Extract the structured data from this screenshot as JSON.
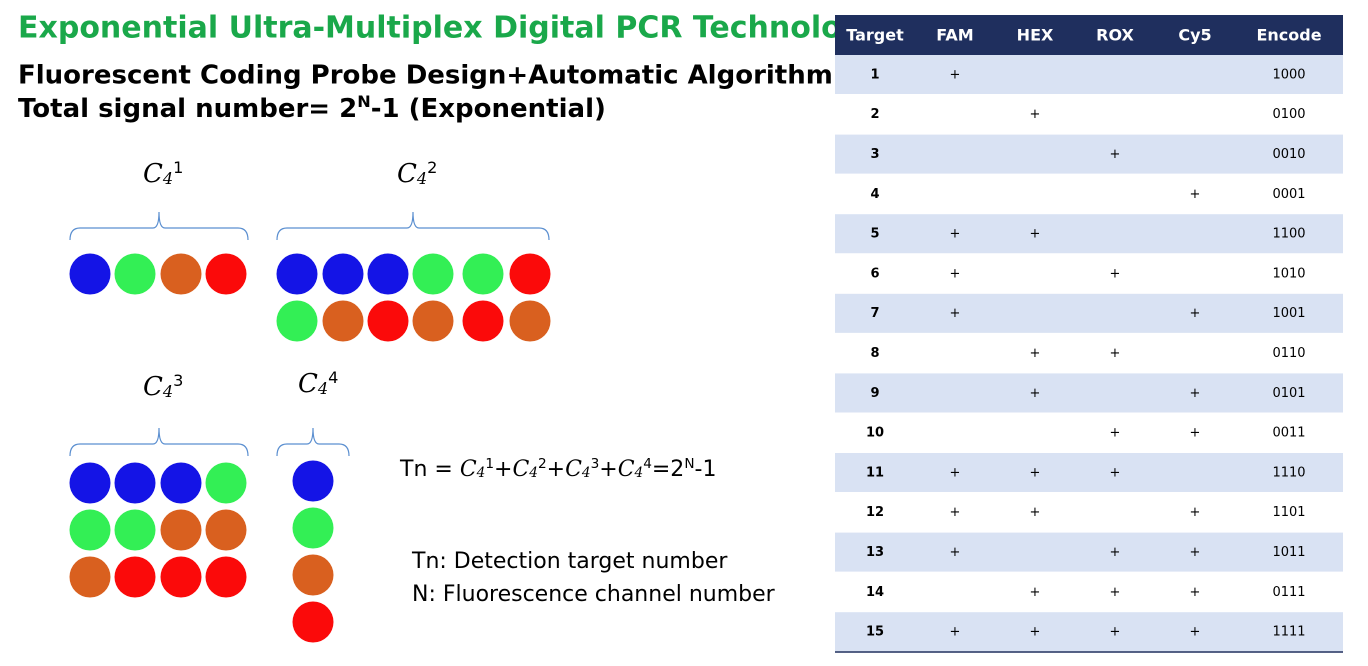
{
  "header": {
    "title": "Exponential Ultra-Multiplex Digital PCR Technology",
    "subtitle": "Fluorescent Coding Probe Design+Automatic Algorithm",
    "signal": {
      "text": "Total signal number= 2",
      "sup": "N",
      "tail": "-1 (Exponential)"
    }
  },
  "groups": [
    {
      "base": "C",
      "sub": "4",
      "sup": "1"
    },
    {
      "base": "C",
      "sub": "4",
      "sup": "2"
    },
    {
      "base": "C",
      "sub": "4",
      "sup": "3"
    },
    {
      "base": "C",
      "sub": "4",
      "sup": "4"
    }
  ],
  "formula": {
    "lhs": "Tn = ",
    "sep": "+",
    "rhs": "=2",
    "rhs_sup": "N",
    "rhs_tail": "-1"
  },
  "notes": [
    "Tn: Detection target number",
    "N: Fluorescence channel number"
  ],
  "table": {
    "columns": [
      "Target",
      "FAM",
      "HEX",
      "ROX",
      "Cy5",
      "Encode"
    ],
    "rows": [
      [
        1,
        "+",
        null,
        null,
        null,
        "1000"
      ],
      [
        2,
        null,
        "+",
        null,
        null,
        "0100"
      ],
      [
        3,
        null,
        null,
        "+",
        null,
        "0010"
      ],
      [
        4,
        null,
        null,
        null,
        "+",
        "0001"
      ],
      [
        5,
        "+",
        "+",
        null,
        null,
        "1100"
      ],
      [
        6,
        "+",
        null,
        "+",
        null,
        "1010"
      ],
      [
        7,
        "+",
        null,
        null,
        "+",
        "1001"
      ],
      [
        8,
        null,
        "+",
        "+",
        null,
        "0110"
      ],
      [
        9,
        null,
        "+",
        null,
        "+",
        "0101"
      ],
      [
        10,
        null,
        null,
        "+",
        "+",
        "0011"
      ],
      [
        11,
        "+",
        "+",
        "+",
        null,
        "1110"
      ],
      [
        12,
        "+",
        "+",
        null,
        "+",
        "1101"
      ],
      [
        13,
        "+",
        null,
        "+",
        "+",
        "1011"
      ],
      [
        14,
        null,
        "+",
        "+",
        "+",
        "0111"
      ],
      [
        15,
        "+",
        "+",
        "+",
        "+",
        "1111"
      ]
    ]
  }
}
